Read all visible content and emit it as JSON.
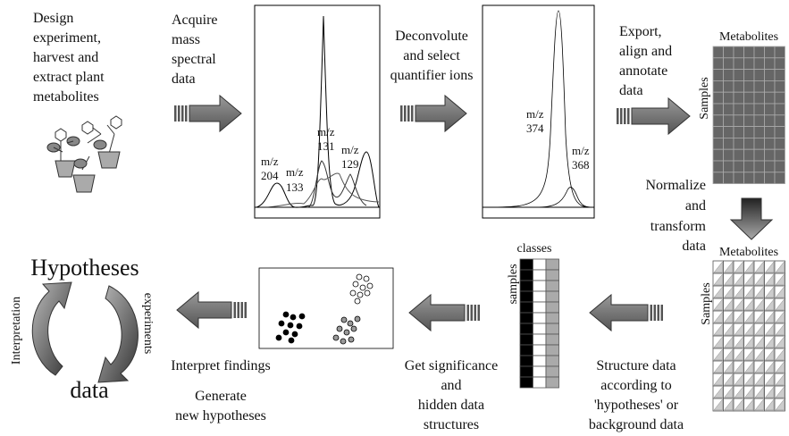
{
  "design": {
    "lines": [
      "Design",
      "experiment,",
      "harvest and",
      "extract plant",
      "metabolites"
    ]
  },
  "acquire": {
    "lines": [
      "Acquire",
      "mass",
      "spectral",
      "data"
    ]
  },
  "spectrum1": {
    "peaks": [
      {
        "lines": [
          "m/z",
          "204"
        ]
      },
      {
        "lines": [
          "m/z",
          "133"
        ]
      },
      {
        "lines": [
          "m/z",
          "131"
        ]
      },
      {
        "lines": [
          "m/z",
          "129"
        ]
      }
    ]
  },
  "deconvolute": {
    "lines": [
      "Deconvolute",
      "and select",
      "quantifier ions"
    ]
  },
  "spectrum2": {
    "peaks": [
      {
        "lines": [
          "m/z",
          "374"
        ]
      },
      {
        "lines": [
          "m/z",
          "368"
        ]
      }
    ]
  },
  "export": {
    "lines": [
      "Export,",
      "align and",
      "annotate",
      "data"
    ]
  },
  "raw_matrix": {
    "columns_label": "Metabolites",
    "rows_label": "Samples"
  },
  "normalize": {
    "lines": [
      "Normalize",
      "and",
      "transform",
      "data"
    ]
  },
  "normalized_matrix": {
    "columns_label": "Metabolites",
    "rows_label": "Samples"
  },
  "structure": {
    "lines": [
      "Structure data",
      "according to",
      "'hypotheses' or",
      "background data"
    ]
  },
  "classes_matrix": {
    "columns_label": "classes",
    "rows_label": "samples"
  },
  "significance": {
    "lines": [
      "Get significance",
      "and",
      "hidden data",
      "structures"
    ]
  },
  "interpret": {
    "lines": [
      "Interpret findings"
    ]
  },
  "generate": {
    "lines": [
      "Generate",
      "new hypotheses"
    ]
  },
  "cycle": {
    "top": "Hypotheses",
    "bottom": "data",
    "left": "Interpretation",
    "right": "experiments"
  }
}
